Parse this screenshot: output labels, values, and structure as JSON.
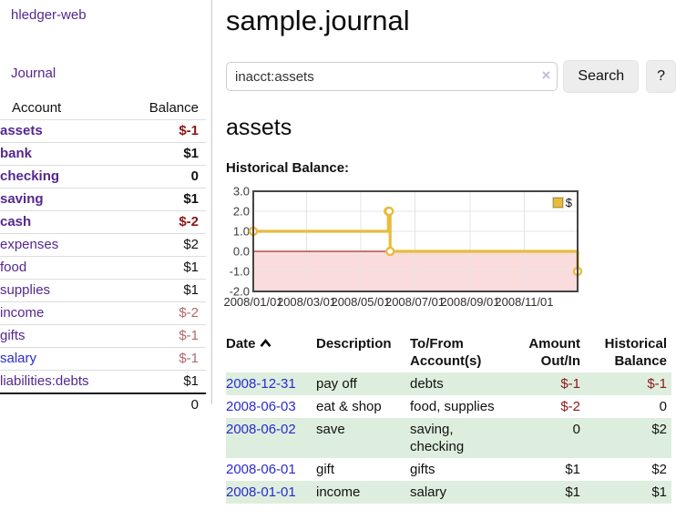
{
  "palette": {
    "purple_link": "#55278f",
    "blue_link": "#2a2ad0",
    "neg_strong": "#8b1717",
    "neg_soft": "#b06868",
    "row_green": "#deeede",
    "chart_line": "#e7bc3e",
    "chart_neg_bg": "#fbdcdc",
    "zero_line": "#8b0000"
  },
  "app": {
    "brand": "hledger-web"
  },
  "nav": {
    "journal": "Journal"
  },
  "sidebar": {
    "account_header": "Account",
    "balance_header": "Balance",
    "accounts": [
      {
        "name": "assets",
        "balance": "$-1"
      },
      {
        "name": "bank",
        "balance": "$1"
      },
      {
        "name": "checking",
        "balance": "0"
      },
      {
        "name": "saving",
        "balance": "$1"
      },
      {
        "name": "cash",
        "balance": "$-2"
      },
      {
        "name": "expenses",
        "balance": "$2"
      },
      {
        "name": "food",
        "balance": "$1"
      },
      {
        "name": "supplies",
        "balance": "$1"
      },
      {
        "name": "income",
        "balance": "$-2"
      },
      {
        "name": "gifts",
        "balance": "$-1"
      },
      {
        "name": "salary",
        "balance": "$-1"
      },
      {
        "name": "liabilities:debts",
        "balance": "$1"
      }
    ],
    "total": "0"
  },
  "header": {
    "title": "sample.journal"
  },
  "search": {
    "value": "inacct:assets",
    "clear_icon": "×",
    "button_label": "Search",
    "help_label": "?"
  },
  "account_page": {
    "heading": "assets",
    "chart_title": "Historical Balance:"
  },
  "chart_data": {
    "type": "line",
    "step": true,
    "title": "Historical Balance:",
    "series": [
      {
        "name": "$",
        "color": "#e7bc3e",
        "points": [
          [
            "2008-01-01",
            1
          ],
          [
            "2008-06-01",
            2
          ],
          [
            "2008-06-02",
            2
          ],
          [
            "2008-06-03",
            0
          ],
          [
            "2008-12-31",
            -1
          ]
        ]
      }
    ],
    "xlim": [
      "2008-01-01",
      "2008-12-31"
    ],
    "ylim": [
      -2,
      3
    ],
    "y_ticks": [
      {
        "value": 3,
        "label": "3.0"
      },
      {
        "value": 2,
        "label": "2.0"
      },
      {
        "value": 1,
        "label": "1.0"
      },
      {
        "value": 0,
        "label": "0.0"
      },
      {
        "value": -1,
        "label": "-1.0"
      },
      {
        "value": -2,
        "label": "-2.0"
      }
    ],
    "x_ticks": [
      {
        "date": "2008-01-01",
        "label": "2008/01/01"
      },
      {
        "date": "2008-03-01",
        "label": "2008/03/01"
      },
      {
        "date": "2008-05-01",
        "label": "2008/05/01"
      },
      {
        "date": "2008-07-01",
        "label": "2008/07/01"
      },
      {
        "date": "2008-09-01",
        "label": "2008/09/01"
      },
      {
        "date": "2008-11-01",
        "label": "2008/11/01"
      }
    ],
    "negative_region_shaded": true,
    "legend_position": "top-right",
    "grid": true
  },
  "register": {
    "headers": {
      "date": "Date",
      "description": "Description",
      "accounts": "To/From\nAccount(s)",
      "amount": "Amount\nOut/In",
      "balance": "Historical\nBalance"
    },
    "sort": "ascending",
    "rows": [
      {
        "date": "2008-12-31",
        "description": "pay off",
        "accounts": "debts",
        "amount": "$-1",
        "balance": "$-1"
      },
      {
        "date": "2008-06-03",
        "description": "eat & shop",
        "accounts": "food, supplies",
        "amount": "$-2",
        "balance": "0"
      },
      {
        "date": "2008-06-02",
        "description": "save",
        "accounts": "saving, checking",
        "amount": "0",
        "balance": "$2"
      },
      {
        "date": "2008-06-01",
        "description": "gift",
        "accounts": "gifts",
        "amount": "$1",
        "balance": "$2"
      },
      {
        "date": "2008-01-01",
        "description": "income",
        "accounts": "salary",
        "amount": "$1",
        "balance": "$1"
      }
    ]
  }
}
